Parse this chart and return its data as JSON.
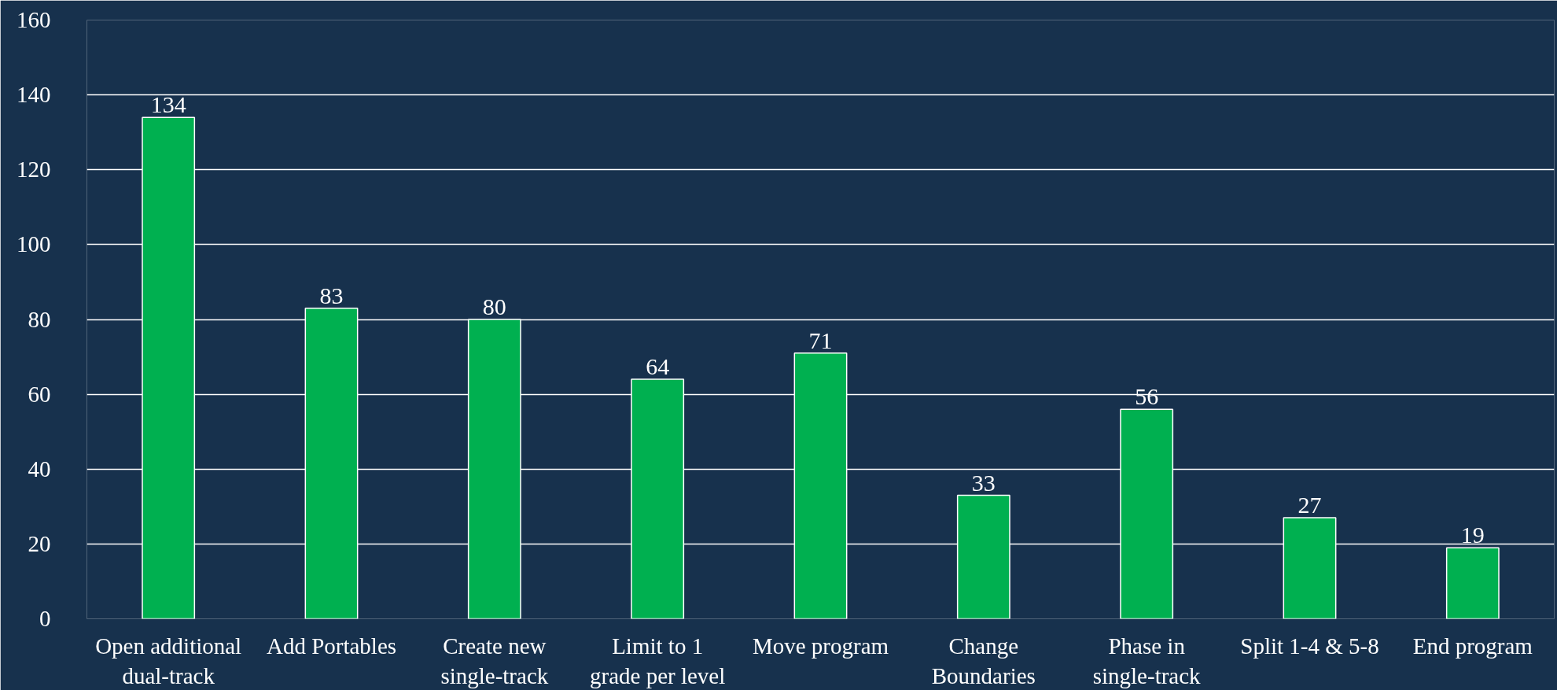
{
  "chart_data": {
    "type": "bar",
    "categories": [
      "Open additional dual-track",
      "Add Portables",
      "Create new single-track",
      "Limit to 1 grade per level",
      "Move program",
      "Change Boundaries",
      "Phase in single-track",
      "Split 1-4 & 5-8",
      "End program"
    ],
    "values": [
      134,
      83,
      80,
      64,
      71,
      33,
      56,
      27,
      19
    ],
    "color": "#00b050",
    "ylim": [
      0,
      160
    ],
    "yticks": [
      0,
      20,
      40,
      60,
      80,
      100,
      120,
      140,
      160
    ],
    "grid": "y",
    "data_labels": true
  }
}
